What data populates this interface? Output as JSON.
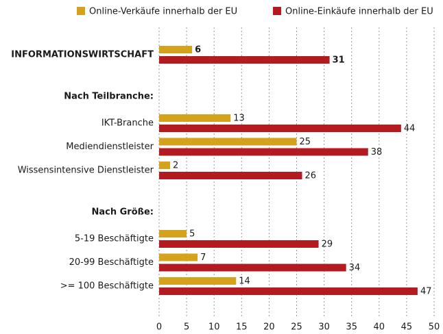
{
  "chart_data": {
    "type": "hbar",
    "categories": [
      "INFORMATIONSWIRTSCHAFT",
      "Nach Teilbranche:",
      "IKT-Branche",
      "Mediendienstleister",
      "Wissensintensive Dienstleister",
      "Nach Größe:",
      "5-19 Beschäftigte",
      "20-99 Beschäftigte",
      ">= 100 Beschäftigte"
    ],
    "series": [
      {
        "name": "Online-Verkäufe innerhalb der EU",
        "color": "#d4a21c",
        "values": [
          6,
          null,
          13,
          25,
          2,
          null,
          5,
          7,
          14
        ]
      },
      {
        "name": "Online-Einkäufe innerhalb der EU",
        "color": "#b31b20",
        "values": [
          31,
          null,
          44,
          38,
          26,
          null,
          29,
          34,
          47
        ]
      }
    ],
    "xlim": [
      0,
      50
    ],
    "xticks": [
      0,
      5,
      10,
      15,
      20,
      25,
      30,
      35,
      40,
      45,
      50
    ],
    "grid": true,
    "legend": "top"
  }
}
